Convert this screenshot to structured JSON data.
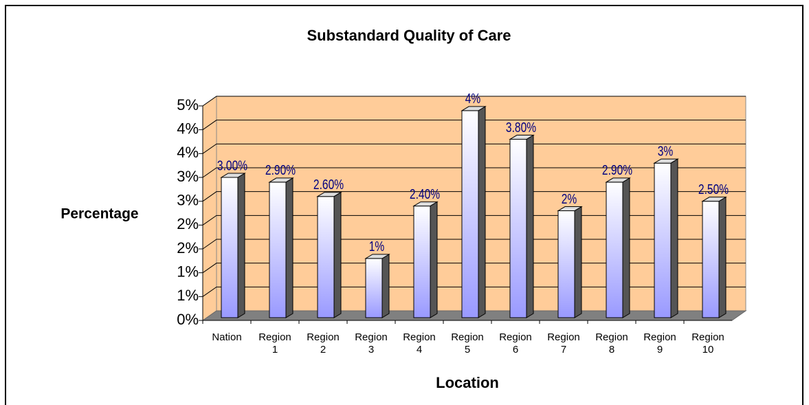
{
  "chart_data": {
    "type": "bar3d",
    "title": "Substandard Quality of Care",
    "x_label": "Location",
    "y_label": "Percentage",
    "categories": [
      "Nation",
      "Region 1",
      "Region 2",
      "Region 3",
      "Region 4",
      "Region 5",
      "Region 6",
      "Region 7",
      "Region 8",
      "Region 9",
      "Region 10"
    ],
    "values": [
      3.0,
      2.9,
      2.6,
      1.3,
      2.4,
      4.4,
      3.8,
      2.3,
      2.9,
      3.3,
      2.5
    ],
    "value_labels": [
      "3.00%",
      "2.90%",
      "2.60%",
      "1%",
      "2.40%",
      "4%",
      "3.80%",
      "2%",
      "2.90%",
      "3%",
      "2.50%"
    ],
    "ylim": [
      0,
      4.5
    ],
    "yticks": [
      {
        "value": 0,
        "label": "0%"
      },
      {
        "value": 0.5,
        "label": "1%"
      },
      {
        "value": 1,
        "label": "1%"
      },
      {
        "value": 1.5,
        "label": "2%"
      },
      {
        "value": 2,
        "label": "2%"
      },
      {
        "value": 2.5,
        "label": "3%"
      },
      {
        "value": 3,
        "label": "3%"
      },
      {
        "value": 3.5,
        "label": "4%"
      },
      {
        "value": 4,
        "label": "4%"
      },
      {
        "value": 4.5,
        "label": "5%"
      }
    ],
    "grid": true,
    "wall_color": "#ffcc99",
    "bar_color": "#9999ff",
    "label_color": "#000080"
  }
}
